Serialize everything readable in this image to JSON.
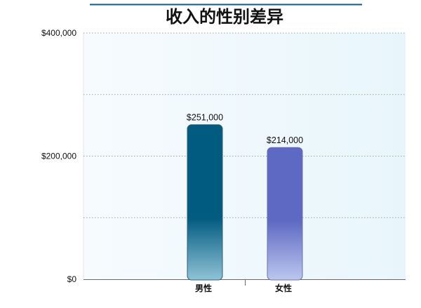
{
  "chart_data": {
    "type": "bar",
    "title": "收入的性别差异",
    "categories": [
      "男性",
      "女性"
    ],
    "values": [
      251000,
      214000
    ],
    "data_labels": [
      "$251,000",
      "$214,000"
    ],
    "ylim": [
      0,
      400000
    ],
    "yticks": [
      {
        "value": 0,
        "label": "$0"
      },
      {
        "value": 200000,
        "label": "$200,000"
      },
      {
        "value": 400000,
        "label": "$400,000"
      }
    ],
    "gridlines": [
      100000,
      200000,
      300000,
      400000
    ],
    "grid": true,
    "colors": {
      "bar_male_top": "#015a80",
      "bar_male_bottom": "#8fc3d6",
      "bar_female_top": "#5d69c2",
      "bar_female_bottom": "#bcc6ef",
      "title_rule": "#0b5a87",
      "plot_bg_left": "#f7fbfe",
      "plot_bg_right": "#e8f6fc"
    }
  }
}
